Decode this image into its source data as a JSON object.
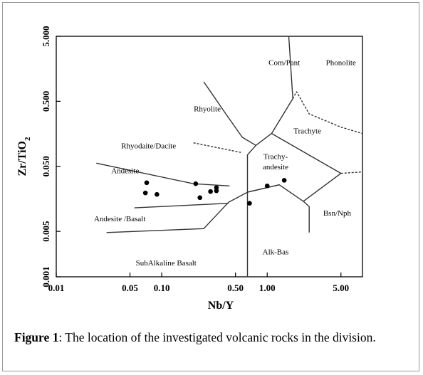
{
  "chart_data": {
    "type": "scatter",
    "xlabel": "Nb/Y",
    "ylabel": "Zr/TiO2",
    "x_scale": "log",
    "y_scale": "log",
    "xlim": [
      0.01,
      8
    ],
    "ylim": [
      0.001,
      5
    ],
    "x_ticks": [
      {
        "value": 0.01,
        "label": "0.01"
      },
      {
        "value": 0.05,
        "label": "0.05"
      },
      {
        "value": 0.1,
        "label": "0.10"
      },
      {
        "value": 0.5,
        "label": "0.50"
      },
      {
        "value": 1,
        "label": "1.00"
      },
      {
        "value": 5,
        "label": "5.00"
      }
    ],
    "y_ticks": [
      {
        "value": 0.001,
        "label": "0.001"
      },
      {
        "value": 0.005,
        "label": "0.005"
      },
      {
        "value": 0.05,
        "label": "0.050"
      },
      {
        "value": 0.5,
        "label": "0.500"
      },
      {
        "value": 5,
        "label": "5.000"
      }
    ],
    "points": [
      {
        "x": 0.072,
        "y": 0.028
      },
      {
        "x": 0.07,
        "y": 0.0195
      },
      {
        "x": 0.09,
        "y": 0.0185
      },
      {
        "x": 0.21,
        "y": 0.027
      },
      {
        "x": 0.23,
        "y": 0.0165
      },
      {
        "x": 0.29,
        "y": 0.0205
      },
      {
        "x": 0.33,
        "y": 0.021
      },
      {
        "x": 0.33,
        "y": 0.0235
      },
      {
        "x": 0.68,
        "y": 0.0135
      },
      {
        "x": 1.0,
        "y": 0.025
      },
      {
        "x": 1.45,
        "y": 0.0305
      }
    ],
    "boundaries": [
      {
        "style": "solid",
        "points": [
          [
            0.024,
            0.056
          ],
          [
            0.2,
            0.027
          ],
          [
            0.44,
            0.025
          ]
        ]
      },
      {
        "style": "solid",
        "points": [
          [
            0.055,
            0.0115
          ],
          [
            0.43,
            0.0135
          ]
        ]
      },
      {
        "style": "solid",
        "points": [
          [
            0.03,
            0.0048
          ],
          [
            0.25,
            0.0055
          ],
          [
            0.43,
            0.014
          ],
          [
            0.65,
            0.02
          ],
          [
            1.3,
            0.026
          ]
        ]
      },
      {
        "style": "solid",
        "points": [
          [
            0.25,
            1.0
          ],
          [
            0.4,
            0.33
          ],
          [
            0.58,
            0.14
          ],
          [
            0.78,
            0.105
          ],
          [
            1.1,
            0.16
          ],
          [
            1.75,
            0.55
          ],
          [
            1.6,
            5.0
          ]
        ]
      },
      {
        "style": "solid",
        "points": [
          [
            0.78,
            0.105
          ],
          [
            0.65,
            0.075
          ],
          [
            0.65,
            0.001
          ]
        ]
      },
      {
        "style": "solid",
        "points": [
          [
            0.65,
            0.02
          ],
          [
            1.3,
            0.026
          ],
          [
            2.2,
            0.0145
          ],
          [
            5.0,
            0.039
          ],
          [
            1.1,
            0.16
          ]
        ]
      },
      {
        "style": "solid",
        "points": [
          [
            2.2,
            0.0145
          ],
          [
            2.5,
            0.012
          ],
          [
            2.5,
            0.0048
          ]
        ]
      },
      {
        "style": "dashed",
        "points": [
          [
            0.2,
            0.115
          ],
          [
            0.58,
            0.081
          ]
        ]
      },
      {
        "style": "dashed",
        "points": [
          [
            1.75,
            0.55
          ],
          [
            1.8,
            0.6
          ],
          [
            1.9,
            0.7
          ],
          [
            2.5,
            0.32
          ],
          [
            5.0,
            0.2
          ],
          [
            8.0,
            0.16
          ]
        ]
      },
      {
        "style": "dashed",
        "points": [
          [
            5.0,
            0.039
          ],
          [
            8.0,
            0.041
          ]
        ]
      }
    ],
    "field_labels": [
      {
        "text": "Com/Pant",
        "x": 1.45,
        "y": 1.8
      },
      {
        "text": "Phonolite",
        "x": 5.0,
        "y": 1.8
      },
      {
        "text": "Rhyolite",
        "x": 0.27,
        "y": 0.35
      },
      {
        "text": "Trachyte",
        "x": 2.4,
        "y": 0.16
      },
      {
        "text": "Rhyodaite/Dacite",
        "x": 0.075,
        "y": 0.095
      },
      {
        "text": "Trachy-",
        "x": 1.2,
        "y": 0.065
      },
      {
        "text": "andesite",
        "x": 1.2,
        "y": 0.045
      },
      {
        "text": "Andesite",
        "x": 0.045,
        "y": 0.039
      },
      {
        "text": "Bsn/Nph",
        "x": 4.6,
        "y": 0.0087
      },
      {
        "text": "Andesite /Basalt",
        "x": 0.04,
        "y": 0.0071
      },
      {
        "text": "Alk-Bas",
        "x": 1.2,
        "y": 0.0022
      },
      {
        "text": "SubAlkaline Basalt",
        "x": 0.11,
        "y": 0.0015
      }
    ]
  },
  "caption": {
    "figure_word": "Figure 1",
    "text": ": The location of the investigated volcanic rocks in the division."
  }
}
